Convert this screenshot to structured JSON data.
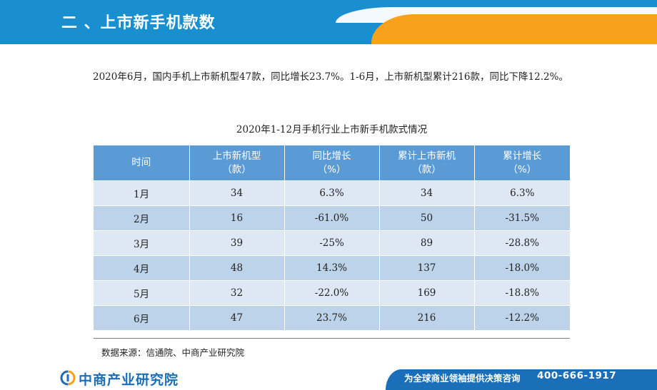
{
  "header": {
    "title": "二 、上市新手机款数"
  },
  "paragraph": "2020年6月，国内手机上市新机型47款，同比增长23.7%。1-6月，上市新机型累计216款，同比下降12.2%。",
  "table": {
    "caption": "2020年1-12月手机行业上市新手机款式情况",
    "headers": [
      {
        "line1": "时间",
        "line2": ""
      },
      {
        "line1": "上市新机型",
        "line2": "（款）"
      },
      {
        "line1": "同比增长",
        "line2": "（%）"
      },
      {
        "line1": "累计上市新机",
        "line2": "（款）"
      },
      {
        "line1": "累计增长",
        "line2": "（%）"
      }
    ],
    "rows": [
      [
        "1月",
        "34",
        "6.3%",
        "34",
        "6.3%"
      ],
      [
        "2月",
        "16",
        "-61.0%",
        "50",
        "-31.5%"
      ],
      [
        "3月",
        "39",
        "-25%",
        "89",
        "-28.8%"
      ],
      [
        "4月",
        "48",
        "14.3%",
        "137",
        "-18.0%"
      ],
      [
        "5月",
        "32",
        "-22.0%",
        "169",
        "-18.8%"
      ],
      [
        "6月",
        "47",
        "23.7%",
        "216",
        "-12.2%"
      ]
    ]
  },
  "source": "数据来源：信通院、中商产业研究院",
  "footer": {
    "logo_text": "中商产业研究院",
    "slogan": "为全球商业领袖提供决策咨询",
    "phone": "400-666-1917"
  },
  "colors": {
    "header_blue": "#1a8fd0",
    "header_orange": "#f7a21a",
    "table_header": "#5b9bd5",
    "row_light": "#dde8f4",
    "row_dark": "#bdd3ea",
    "footer_blue": "#1a6fb8"
  }
}
